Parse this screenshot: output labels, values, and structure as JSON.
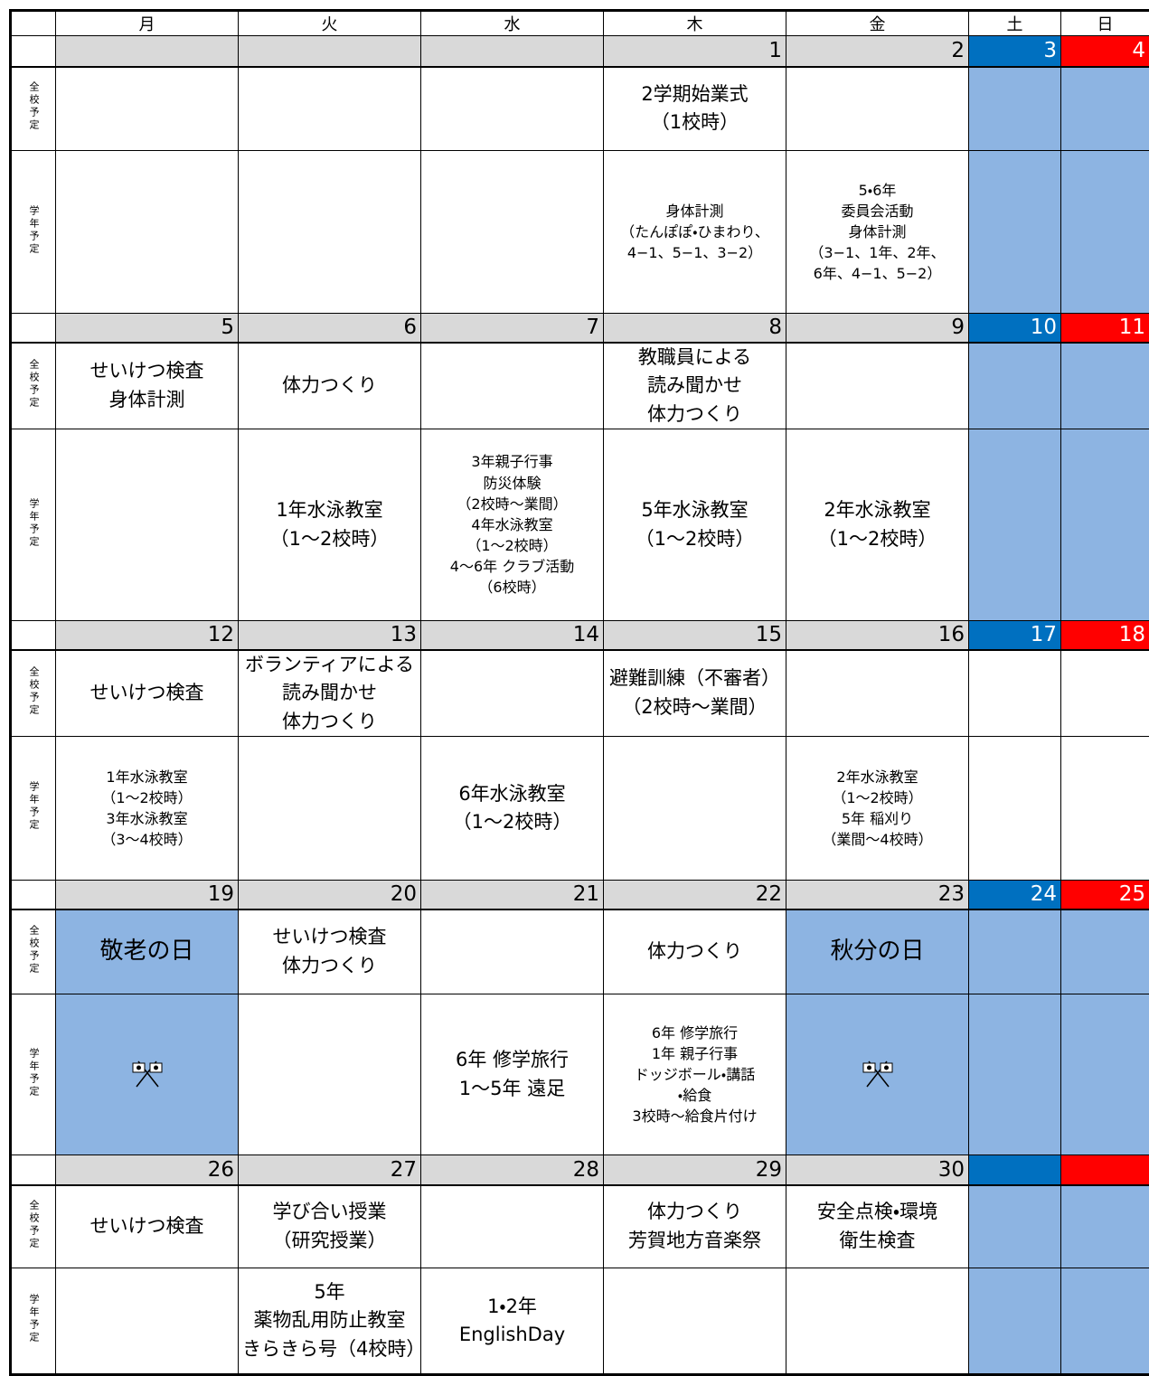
{
  "weekdays": [
    "月",
    "火",
    "水",
    "木",
    "金",
    "土",
    "日"
  ],
  "row_labels": [
    "全校予定",
    "学年予定"
  ],
  "weeks": [
    {
      "dates": [
        null,
        null,
        null,
        1,
        2,
        3,
        4
      ],
      "shaded": [
        5,
        6
      ],
      "school": [
        null,
        null,
        null,
        "2学期始業式\n（1校時）",
        null,
        null,
        null
      ],
      "grade": [
        null,
        null,
        null,
        "身体計測\n（たんぽぽ・ひまわり、\n4−1、5−1、3−2）",
        "5・6年\n委員会活動\n身体計測\n（3−1、1年、2年、\n6年、4−1、5−2）",
        null,
        null
      ]
    },
    {
      "dates": [
        5,
        6,
        7,
        8,
        9,
        10,
        11
      ],
      "shaded": [
        5,
        6
      ],
      "school": [
        "せいけつ検査\n身体計測",
        "体力つくり",
        null,
        "教職員による\n読み聞かせ\n体力つくり",
        null,
        null,
        null
      ],
      "grade": [
        null,
        "1年水泳教室\n（1〜2校時）",
        "3年親子行事\n防災体験\n（2校時〜業間）\n4年水泳教室\n（1〜2校時）\n4〜6年 クラブ活動\n（6校時）",
        "5年水泳教室\n（1〜2校時）",
        "2年水泳教室\n（1〜2校時）",
        null,
        null
      ]
    },
    {
      "dates": [
        12,
        13,
        14,
        15,
        16,
        17,
        18
      ],
      "shaded": [],
      "school": [
        "せいけつ検査",
        "ボランティアによる\n読み聞かせ\n体力つくり",
        null,
        "避難訓練（不審者）\n（2校時〜業間）",
        null,
        null,
        null
      ],
      "grade": [
        "1年水泳教室\n（1〜2校時）\n3年水泳教室\n（3〜4校時）",
        null,
        "6年水泳教室\n（1〜2校時）",
        null,
        "2年水泳教室\n（1〜2校時）\n5年 稲刈り\n（業間〜4校時）",
        null,
        null
      ]
    },
    {
      "dates": [
        19,
        20,
        21,
        22,
        23,
        24,
        25
      ],
      "shaded": [
        0,
        4,
        5,
        6
      ],
      "school": [
        "敬老の日",
        "せいけつ検査\n体力つくり",
        null,
        "体力つくり",
        "秋分の日",
        null,
        null
      ],
      "grade": [
        null,
        null,
        "6年 修学旅行\n1〜5年 遠足",
        "6年 修学旅行\n1年 親子行事\nドッジボール・講話\n・給食\n3校時〜給食片付け",
        null,
        null,
        null
      ]
    },
    {
      "dates": [
        26,
        27,
        28,
        29,
        30,
        null,
        null
      ],
      "shaded": [
        5,
        6
      ],
      "school": [
        "せいけつ検査",
        "学び合い授業\n（研究授業）",
        null,
        "体力つくり\n芳賀地方音楽祭",
        "安全点検・環境\n衛生検査",
        null,
        null
      ],
      "grade": [
        null,
        "5年\n薬物乱用防止教室\nきらきら号（4校時）",
        "1・2年\nEnglishDay",
        null,
        null,
        null,
        null
      ]
    }
  ]
}
